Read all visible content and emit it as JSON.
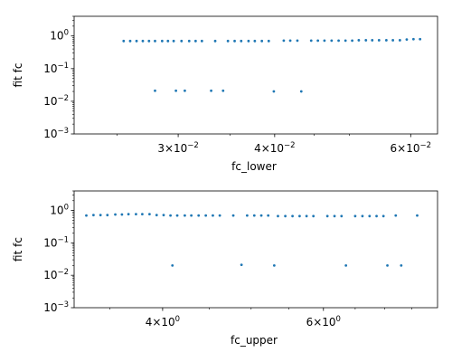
{
  "chart_data": [
    {
      "type": "scatter",
      "xlabel": "fc_lower",
      "ylabel": "fit fc",
      "xscale": "log",
      "yscale": "log",
      "xlim": [
        0.022,
        0.065
      ],
      "ylim": [
        0.001,
        4.0
      ],
      "grid": false,
      "marker_color": "#1f77b4",
      "x_tick_labels": [
        {
          "value": 0.03,
          "mantissa": "3×10",
          "exp": "−2"
        },
        {
          "value": 0.04,
          "mantissa": "4×10",
          "exp": "−2"
        },
        {
          "value": 0.06,
          "mantissa": "6×10",
          "exp": "−2"
        }
      ],
      "y_tick_labels": [
        {
          "value": 1,
          "base": "10",
          "exp": "0"
        },
        {
          "value": 0.1,
          "base": "10",
          "exp": "−1"
        },
        {
          "value": 0.01,
          "base": "10",
          "exp": "−2"
        },
        {
          "value": 0.001,
          "base": "10",
          "exp": "−3"
        }
      ],
      "x_minor_ticks": [
        0.025,
        0.035,
        0.045,
        0.05
      ],
      "points": [
        {
          "x": 0.0255,
          "y": 0.7
        },
        {
          "x": 0.026,
          "y": 0.7
        },
        {
          "x": 0.0265,
          "y": 0.7
        },
        {
          "x": 0.027,
          "y": 0.7
        },
        {
          "x": 0.0275,
          "y": 0.7
        },
        {
          "x": 0.028,
          "y": 0.7
        },
        {
          "x": 0.028,
          "y": 0.021
        },
        {
          "x": 0.0286,
          "y": 0.7
        },
        {
          "x": 0.0291,
          "y": 0.7
        },
        {
          "x": 0.0296,
          "y": 0.7
        },
        {
          "x": 0.0298,
          "y": 0.021
        },
        {
          "x": 0.0303,
          "y": 0.7
        },
        {
          "x": 0.0306,
          "y": 0.021
        },
        {
          "x": 0.031,
          "y": 0.7
        },
        {
          "x": 0.0316,
          "y": 0.7
        },
        {
          "x": 0.0322,
          "y": 0.7
        },
        {
          "x": 0.0331,
          "y": 0.021
        },
        {
          "x": 0.0335,
          "y": 0.7
        },
        {
          "x": 0.0343,
          "y": 0.021
        },
        {
          "x": 0.0348,
          "y": 0.7
        },
        {
          "x": 0.0355,
          "y": 0.7
        },
        {
          "x": 0.0362,
          "y": 0.7
        },
        {
          "x": 0.037,
          "y": 0.7
        },
        {
          "x": 0.0377,
          "y": 0.7
        },
        {
          "x": 0.0385,
          "y": 0.7
        },
        {
          "x": 0.0393,
          "y": 0.7
        },
        {
          "x": 0.0399,
          "y": 0.02
        },
        {
          "x": 0.0411,
          "y": 0.72
        },
        {
          "x": 0.0419,
          "y": 0.72
        },
        {
          "x": 0.0428,
          "y": 0.72
        },
        {
          "x": 0.0433,
          "y": 0.02
        },
        {
          "x": 0.0446,
          "y": 0.72
        },
        {
          "x": 0.0455,
          "y": 0.72
        },
        {
          "x": 0.0464,
          "y": 0.72
        },
        {
          "x": 0.0474,
          "y": 0.72
        },
        {
          "x": 0.0484,
          "y": 0.72
        },
        {
          "x": 0.0494,
          "y": 0.72
        },
        {
          "x": 0.0504,
          "y": 0.72
        },
        {
          "x": 0.0514,
          "y": 0.74
        },
        {
          "x": 0.0525,
          "y": 0.74
        },
        {
          "x": 0.0535,
          "y": 0.74
        },
        {
          "x": 0.0546,
          "y": 0.74
        },
        {
          "x": 0.0558,
          "y": 0.74
        },
        {
          "x": 0.0569,
          "y": 0.74
        },
        {
          "x": 0.0581,
          "y": 0.74
        },
        {
          "x": 0.0593,
          "y": 0.78
        },
        {
          "x": 0.0605,
          "y": 0.8
        },
        {
          "x": 0.0617,
          "y": 0.8
        }
      ]
    },
    {
      "type": "scatter",
      "xlabel": "fc_upper",
      "ylabel": "fit fc",
      "xscale": "log",
      "yscale": "log",
      "xlim": [
        3.2,
        8.0
      ],
      "ylim": [
        0.001,
        4.0
      ],
      "grid": false,
      "marker_color": "#1f77b4",
      "x_tick_labels": [
        {
          "value": 4,
          "mantissa": "4×10",
          "exp": "0"
        },
        {
          "value": 6,
          "mantissa": "6×10",
          "exp": "0"
        }
      ],
      "y_tick_labels": [
        {
          "value": 1,
          "base": "10",
          "exp": "0"
        },
        {
          "value": 0.1,
          "base": "10",
          "exp": "−1"
        },
        {
          "value": 0.01,
          "base": "10",
          "exp": "−2"
        },
        {
          "value": 0.001,
          "base": "10",
          "exp": "−3"
        }
      ],
      "x_minor_ticks": [
        3.5,
        4.5,
        5,
        5.5,
        6.5,
        7,
        7.5
      ],
      "points": [
        {
          "x": 3.3,
          "y": 0.7
        },
        {
          "x": 3.36,
          "y": 0.72
        },
        {
          "x": 3.42,
          "y": 0.72
        },
        {
          "x": 3.48,
          "y": 0.72
        },
        {
          "x": 3.55,
          "y": 0.75
        },
        {
          "x": 3.61,
          "y": 0.75
        },
        {
          "x": 3.67,
          "y": 0.77
        },
        {
          "x": 3.74,
          "y": 0.77
        },
        {
          "x": 3.8,
          "y": 0.77
        },
        {
          "x": 3.87,
          "y": 0.77
        },
        {
          "x": 3.94,
          "y": 0.72
        },
        {
          "x": 4.01,
          "y": 0.72
        },
        {
          "x": 4.08,
          "y": 0.7
        },
        {
          "x": 4.1,
          "y": 0.02
        },
        {
          "x": 4.15,
          "y": 0.7
        },
        {
          "x": 4.23,
          "y": 0.7
        },
        {
          "x": 4.3,
          "y": 0.7
        },
        {
          "x": 4.38,
          "y": 0.7
        },
        {
          "x": 4.46,
          "y": 0.7
        },
        {
          "x": 4.54,
          "y": 0.7
        },
        {
          "x": 4.62,
          "y": 0.7
        },
        {
          "x": 4.78,
          "y": 0.7
        },
        {
          "x": 4.88,
          "y": 0.021
        },
        {
          "x": 4.95,
          "y": 0.7
        },
        {
          "x": 5.04,
          "y": 0.7
        },
        {
          "x": 5.13,
          "y": 0.7
        },
        {
          "x": 5.22,
          "y": 0.7
        },
        {
          "x": 5.3,
          "y": 0.02
        },
        {
          "x": 5.35,
          "y": 0.67
        },
        {
          "x": 5.45,
          "y": 0.67
        },
        {
          "x": 5.55,
          "y": 0.67
        },
        {
          "x": 5.65,
          "y": 0.67
        },
        {
          "x": 5.75,
          "y": 0.67
        },
        {
          "x": 5.85,
          "y": 0.67
        },
        {
          "x": 6.06,
          "y": 0.67
        },
        {
          "x": 6.17,
          "y": 0.67
        },
        {
          "x": 6.28,
          "y": 0.67
        },
        {
          "x": 6.35,
          "y": 0.02
        },
        {
          "x": 6.5,
          "y": 0.67
        },
        {
          "x": 6.62,
          "y": 0.67
        },
        {
          "x": 6.74,
          "y": 0.67
        },
        {
          "x": 6.86,
          "y": 0.67
        },
        {
          "x": 6.98,
          "y": 0.67
        },
        {
          "x": 7.05,
          "y": 0.02
        },
        {
          "x": 7.2,
          "y": 0.7
        },
        {
          "x": 7.3,
          "y": 0.02
        },
        {
          "x": 7.6,
          "y": 0.7
        }
      ]
    }
  ]
}
